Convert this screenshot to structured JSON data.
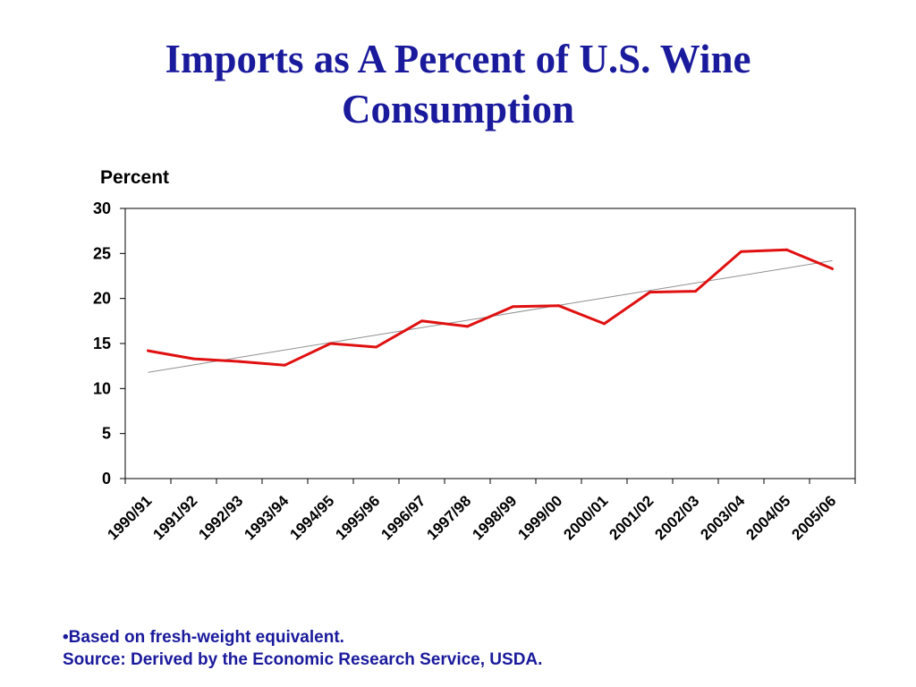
{
  "title_line1": "Imports as A Percent of U.S. Wine",
  "title_line2": "Consumption",
  "footnotes": {
    "note": "•Based on fresh-weight equivalent.",
    "source": "Source: Derived by the Economic Research Service, USDA."
  },
  "colors": {
    "title": "#1a1a9c",
    "series": "#e01010",
    "trendline": "#909090",
    "axis": "#000000"
  },
  "chart_data": {
    "type": "line",
    "title": "",
    "xlabel": "",
    "ylabel": "Percent",
    "ylim": [
      0,
      30
    ],
    "yticks": [
      0,
      5,
      10,
      15,
      20,
      25,
      30
    ],
    "grid": false,
    "legend": "none",
    "categories": [
      "1990/91",
      "1991/92",
      "1992/93",
      "1993/94",
      "1994/95",
      "1995/96",
      "1996/97",
      "1997/98",
      "1998/99",
      "1999/00",
      "2000/01",
      "2001/02",
      "2002/03",
      "2003/04",
      "2004/05",
      "2005/06"
    ],
    "series": [
      {
        "values": [
          14.2,
          13.3,
          13.0,
          12.6,
          15.0,
          14.6,
          17.5,
          16.9,
          19.1,
          19.2,
          17.2,
          20.7,
          20.8,
          25.2,
          25.4,
          23.3
        ]
      }
    ],
    "trendline": {
      "type": "linear",
      "start": 11.8,
      "end": 24.2
    }
  }
}
